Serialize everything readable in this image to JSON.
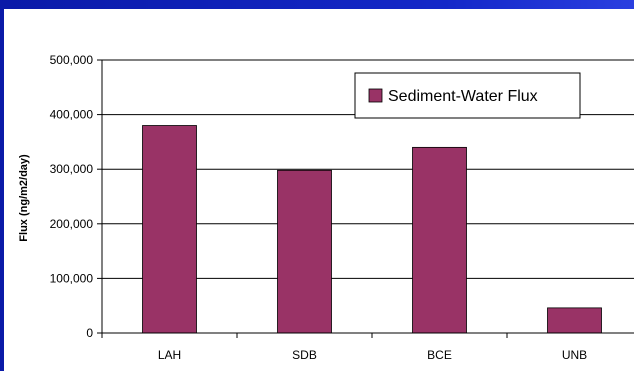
{
  "chart_data": {
    "type": "bar",
    "categories": [
      "LAH",
      "SDB",
      "BCE",
      "UNB"
    ],
    "series": [
      {
        "name": "Sediment-Water Flux",
        "values": [
          380000,
          298000,
          340000,
          46000
        ],
        "color": "#993366"
      }
    ],
    "ylabel": "Flux (ng/m2/day)",
    "ylim": [
      0,
      500000
    ],
    "yticks": [
      0,
      100000,
      200000,
      300000,
      400000,
      500000
    ],
    "ytick_labels": [
      "0",
      "100,000",
      "200,000",
      "300,000",
      "400,000",
      "500,000"
    ],
    "grid": true,
    "legend_position": "top-right"
  },
  "colors": {
    "frame": "#0a1aa8",
    "bar": "#993366",
    "gridline": "#000000"
  }
}
